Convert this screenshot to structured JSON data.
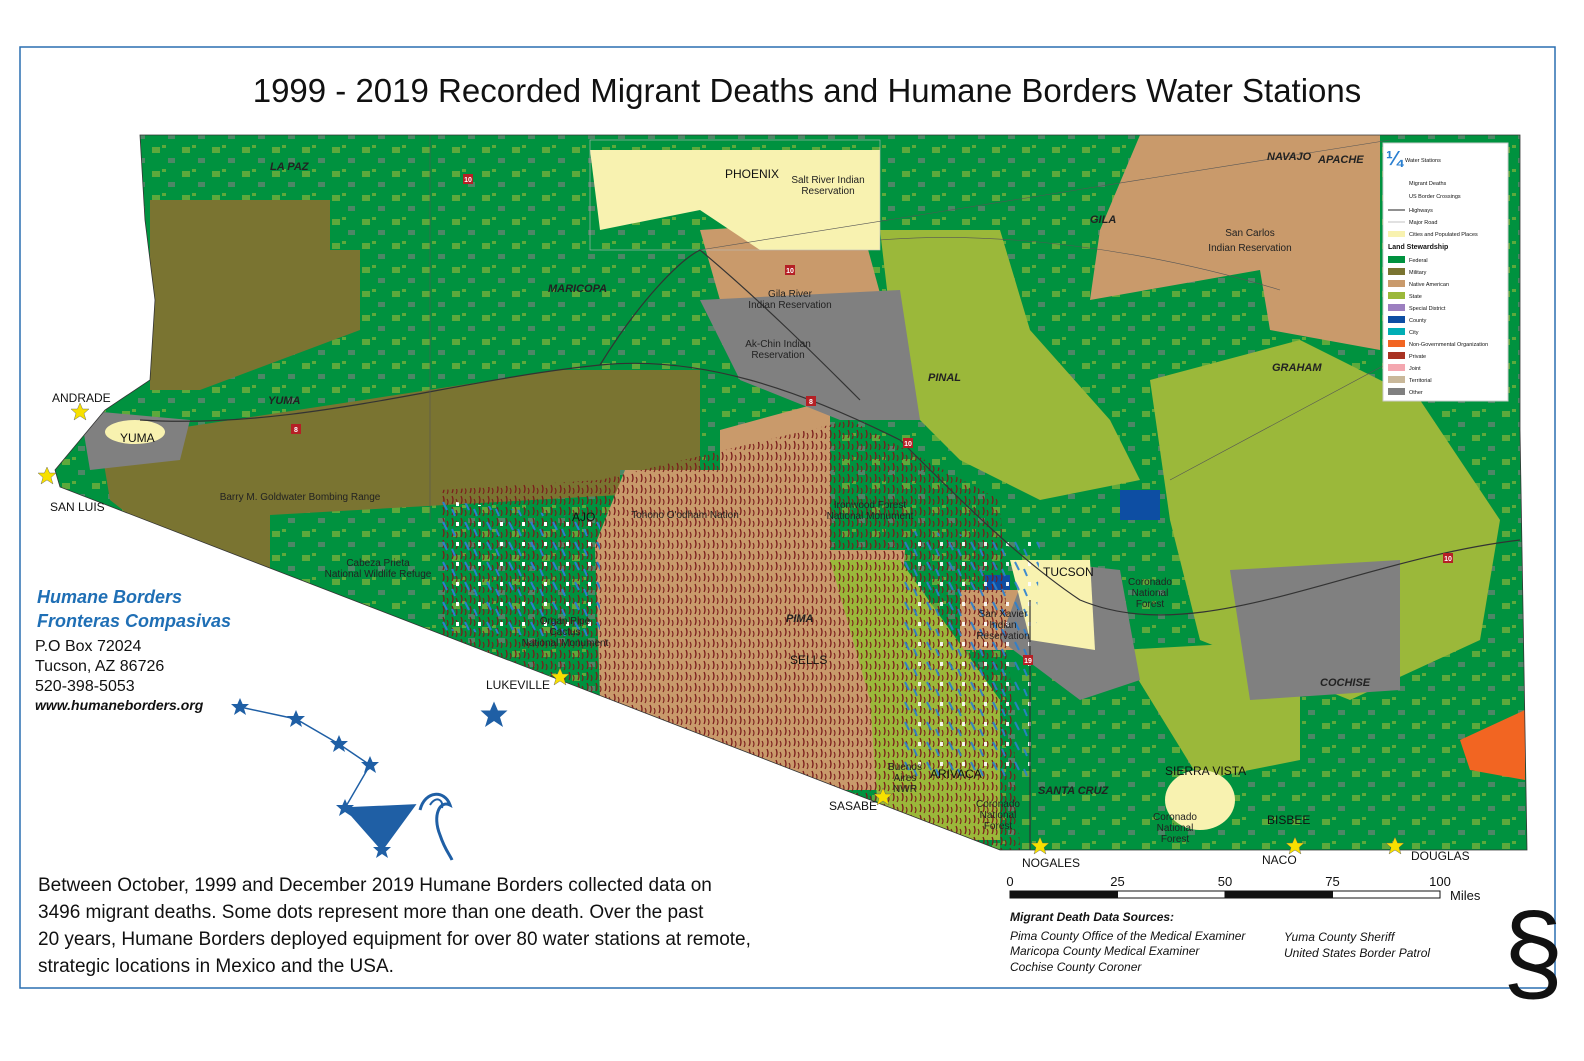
{
  "title": "1999 - 2019 Recorded Migrant Deaths and Humane Borders Water Stations",
  "counties": [
    "LA PAZ",
    "MARICOPA",
    "YUMA",
    "PINAL",
    "GILA",
    "NAVAJO",
    "APACHE",
    "GRAHAM",
    "PIMA",
    "SANTA CRUZ",
    "COCHISE"
  ],
  "cities": [
    "PHOENIX",
    "YUMA",
    "TUCSON",
    "AJO",
    "SELLS",
    "ARIVACA",
    "SIERRA VISTA",
    "BISBEE",
    "ANDRADE",
    "SAN LUIS",
    "LUKEVILLE",
    "SASABE",
    "NOGALES",
    "NACO",
    "DOUGLAS"
  ],
  "areas": [
    [
      "Salt River Indian",
      "Reservation"
    ],
    [
      "Gila River",
      "Indian Reservation"
    ],
    [
      "Ak-Chin Indian",
      "Reservation"
    ],
    [
      "San Carlos",
      "Indian Reservation"
    ],
    [
      "Barry M. Goldwater Bombing Range"
    ],
    [
      "Tohono O'odham Nation"
    ],
    [
      "Cabeza Prieta",
      "National Wildlife Refuge"
    ],
    [
      "Organ Pipe",
      "Cactus",
      "National Monument"
    ],
    [
      "Ironwood Forest",
      "National Monument"
    ],
    [
      "San Xavier",
      "Indian",
      "Reservation"
    ],
    [
      "Coronado",
      "National",
      "Forest"
    ],
    [
      "Coronado",
      "National",
      "Forest"
    ],
    [
      "Coronado",
      "National",
      "Forest"
    ],
    [
      "Buenos",
      "Aires",
      "NWR"
    ]
  ],
  "highways": [
    "10",
    "10",
    "8",
    "8",
    "10",
    "19",
    "10"
  ],
  "legend": {
    "symbols": [
      "Water Stations",
      "Migrant Deaths",
      "US Border Crossings",
      "Highways",
      "Major Road",
      "Cities and Populated Places"
    ],
    "heading": "Land Stewardship",
    "items": [
      {
        "name": "Federal",
        "color": "#00923f"
      },
      {
        "name": "Military",
        "color": "#7a7431"
      },
      {
        "name": "Native American",
        "color": "#c99a6b"
      },
      {
        "name": "State",
        "color": "#9bb83a"
      },
      {
        "name": "Special District",
        "color": "#9c7fc0"
      },
      {
        "name": "County",
        "color": "#0d4ea3"
      },
      {
        "name": "City",
        "color": "#00aeb5"
      },
      {
        "name": "Non-Governmental Organization",
        "color": "#f26522"
      },
      {
        "name": "Private",
        "color": "#a83222"
      },
      {
        "name": "Joint",
        "color": "#f4a7b0"
      },
      {
        "name": "Territorial",
        "color": "#c9b89a"
      },
      {
        "name": "Other",
        "color": "#808080"
      }
    ]
  },
  "organization": {
    "name": "Humane Borders",
    "name_es": "Fronteras Compasivas",
    "address": [
      "P.O Box 72024",
      "Tucson, AZ 86726",
      "520-398-5053"
    ],
    "website": "www.humaneborders.org"
  },
  "description": [
    "Between October, 1999 and December 2019 Humane Borders collected data on",
    "3496 migrant deaths. Some dots represent more than one death. Over the past",
    "20 years, Humane Borders deployed equipment for over 80 water stations at remote,",
    "strategic locations in Mexico and the USA."
  ],
  "scale": {
    "ticks": [
      0,
      25,
      50,
      75,
      100
    ],
    "unit": "Miles"
  },
  "sources": {
    "heading": "Migrant Death Data Sources:",
    "left": [
      "Pima County Office of the Medical Examiner",
      "Maricopa County Medical Examiner",
      "Cochise County Coroner"
    ],
    "right": [
      "Yuma County Sheriff",
      "United States Border Patrol"
    ]
  },
  "section_mark": "§"
}
